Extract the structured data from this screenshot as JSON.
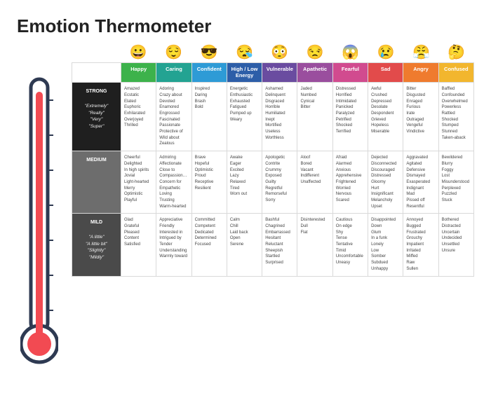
{
  "title": "Emotion Thermometer",
  "thermometer": {
    "fill_color": "#f24a52",
    "outline_color": "#2e3a52",
    "tick_color": "#2e3a52",
    "bg": "#ffffff"
  },
  "columns": [
    {
      "label": "Happy",
      "color": "#3db24b",
      "emoji": "😀"
    },
    {
      "label": "Caring",
      "color": "#23a392",
      "emoji": "😌"
    },
    {
      "label": "Confident",
      "color": "#2e9bd6",
      "emoji": "😎"
    },
    {
      "label": "High / Low Energy",
      "color": "#2d5ea8",
      "emoji": "😪"
    },
    {
      "label": "Vulnerable",
      "color": "#6a4ca0",
      "emoji": "😳"
    },
    {
      "label": "Apathetic",
      "color": "#9a4e9e",
      "emoji": "😒"
    },
    {
      "label": "Fearful",
      "color": "#d14b8f",
      "emoji": "😱"
    },
    {
      "label": "Sad",
      "color": "#e24b4b",
      "emoji": "😢"
    },
    {
      "label": "Angry",
      "color": "#ef7b2e",
      "emoji": "😤"
    },
    {
      "label": "Confused",
      "color": "#f2b62e",
      "emoji": "🤔"
    }
  ],
  "rows": [
    {
      "key": "strong",
      "label": "STRONG",
      "bg": "#1f1f1f",
      "qualifiers": [
        "\"Extremely\"",
        "\"Really\"",
        "\"Very\"",
        "\"Super\""
      ],
      "cells": [
        [
          "Amazed",
          "Ecstatic",
          "Elated",
          "Euphoric",
          "Exhilarated",
          "Overjoyed",
          "Thrilled"
        ],
        [
          "Adoring",
          "Crazy about",
          "Devoted",
          "Enamored",
          "Engrossed",
          "Fascinated",
          "Passionate",
          "Protective of",
          "Wild about",
          "Zealous"
        ],
        [
          "Inspired",
          "Daring",
          "Brash",
          "Bold"
        ],
        [
          "Energetic",
          "Enthusiastic",
          "Exhausted",
          "Fatigued",
          "Pumped up",
          "Weary"
        ],
        [
          "Ashamed",
          "Delinquent",
          "Disgraced",
          "Horrible",
          "Humiliated",
          "Inept",
          "Mortified",
          "Useless",
          "Worthless"
        ],
        [
          "Jaded",
          "Numbed",
          "Cynical",
          "Bitter"
        ],
        [
          "Distressed",
          "Horrified",
          "Intimidated",
          "Panicked",
          "Paralyzed",
          "Petrified",
          "Shocked",
          "Terrified"
        ],
        [
          "Awful",
          "Crushed",
          "Depressed",
          "Desolate",
          "Despondent",
          "Grieved",
          "Hopeless",
          "Miserable"
        ],
        [
          "Bitter",
          "Disgusted",
          "Enraged",
          "Furious",
          "Irate",
          "Outraged",
          "Vengeful",
          "Vindictive"
        ],
        [
          "Baffled",
          "Confounded",
          "Overwhelmed",
          "Powerless",
          "Rattled",
          "Shocked",
          "Stumped",
          "Stunned",
          "Taken-aback"
        ]
      ]
    },
    {
      "key": "medium",
      "label": "MEDIUM",
      "bg": "#6d6d6d",
      "qualifiers": [],
      "cells": [
        [
          "Cheerful",
          "Delighted",
          "In high spirits",
          "Jovial",
          "Light-hearted",
          "Merry",
          "Optimistic",
          "Playful"
        ],
        [
          "Admiring",
          "Affectionate",
          "Close to",
          "Compassionate",
          "Concern for",
          "Empathetic",
          "Loving",
          "Trusting",
          "Warm-hearted"
        ],
        [
          "Brave",
          "Hopeful",
          "Optimistic",
          "Proud",
          "Receptive",
          "Resilient"
        ],
        [
          "Awake",
          "Eager",
          "Excited",
          "Lazy",
          "Relaxed",
          "Tired",
          "Worn out"
        ],
        [
          "Apologetic",
          "Contrite",
          "Crummy",
          "Exposed",
          "Guilty",
          "Regretful",
          "Remorseful",
          "Sorry"
        ],
        [
          "Aloof",
          "Bored",
          "Vacant",
          "Indifferent",
          "Unaffected"
        ],
        [
          "Afraid",
          "Alarmed",
          "Anxious",
          "Apprehensive",
          "Frightened",
          "Worried",
          "Nervous",
          "Scared"
        ],
        [
          "Dejected",
          "Disconnected",
          "Discouraged",
          "Distressed",
          "Gloomy",
          "Hurt",
          "Insignificant",
          "Melancholy",
          "Upset"
        ],
        [
          "Aggravated",
          "Agitated",
          "Defensive",
          "Dismayed",
          "Exasperated",
          "Indignant",
          "Mad",
          "Pissed off",
          "Resentful"
        ],
        [
          "Bewildered",
          "Blurry",
          "Foggy",
          "Lost",
          "Misunderstood",
          "Perplexed",
          "Puzzled",
          "Stuck"
        ]
      ]
    },
    {
      "key": "mild",
      "label": "MILD",
      "bg": "#4a4a4a",
      "qualifiers": [
        "\"A little\"",
        "\"A little bit\"",
        "\"Slightly\"",
        "\"Mildly\""
      ],
      "cells": [
        [
          "Glad",
          "Grateful",
          "Pleased",
          "Content",
          "Satisfied"
        ],
        [
          "Appreciative",
          "Friendly",
          "Interested in",
          "Intrigued by",
          "Tender",
          "Understanding",
          "Warmly toward"
        ],
        [
          "Committed",
          "Competent",
          "Dedicated",
          "Determined",
          "Focused"
        ],
        [
          "Calm",
          "Chill",
          "Laid back",
          "Open",
          "Serene"
        ],
        [
          "Bashful",
          "Chagrined",
          "Embarrassed",
          "Hesitant",
          "Reluctant",
          "Sheepish",
          "Startled",
          "Surprised"
        ],
        [
          "Disinterested",
          "Dull",
          "Flat"
        ],
        [
          "Cautious",
          "On edge",
          "Shy",
          "Tense",
          "Tentative",
          "Timid",
          "Uncomfortable",
          "Uneasy"
        ],
        [
          "Disappointed",
          "Down",
          "Glum",
          "In a funk",
          "Lonely",
          "Low",
          "Somber",
          "Subdued",
          "Unhappy"
        ],
        [
          "Annoyed",
          "Bugged",
          "Frustrated",
          "Grouchy",
          "Impatient",
          "Irritated",
          "Miffed",
          "Raw",
          "Sullen"
        ],
        [
          "Bothered",
          "Distracted",
          "Uncertain",
          "Undecided",
          "Unsettled",
          "Unsure"
        ]
      ]
    }
  ]
}
